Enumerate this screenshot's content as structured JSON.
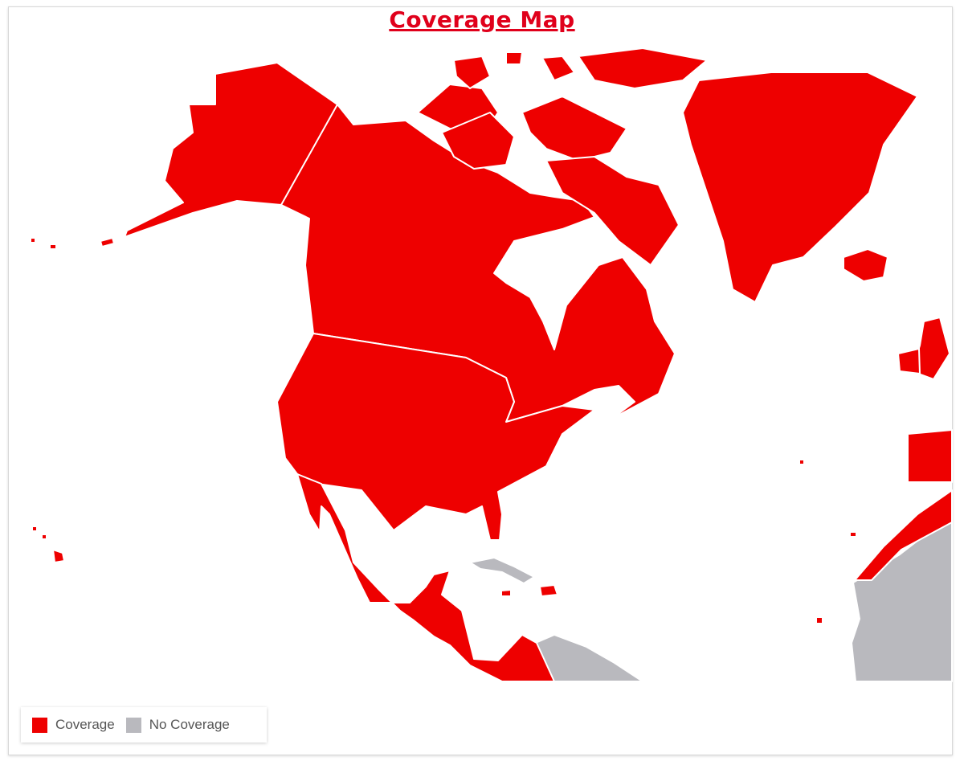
{
  "title": "Coverage Map",
  "legend": {
    "items": [
      {
        "label": "Coverage",
        "color": "#ee0000"
      },
      {
        "label": "No Coverage",
        "color": "#b9b9be"
      }
    ]
  },
  "regions": {
    "coverage": [
      "Alaska",
      "Canada",
      "United States",
      "Mexico",
      "Central America",
      "Greenland",
      "Iceland",
      "Arctic Islands",
      "Hawaii",
      "United Kingdom",
      "Ireland",
      "Spain",
      "Portugal",
      "Morocco",
      "Western Sahara",
      "Caribbean Islands"
    ],
    "no_coverage": [
      "Cuba",
      "South America",
      "West Africa"
    ]
  }
}
